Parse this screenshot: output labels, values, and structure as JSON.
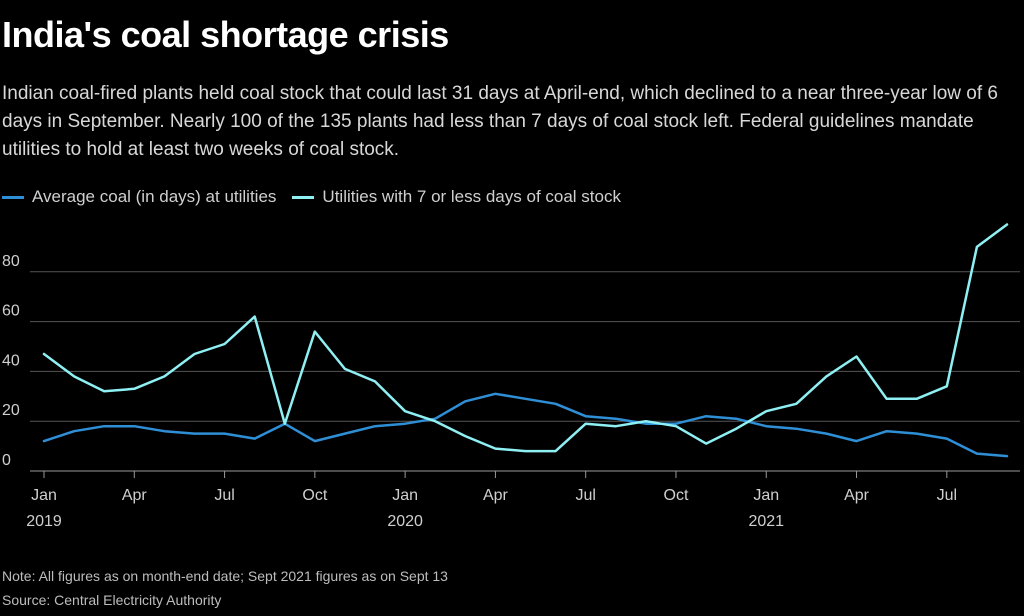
{
  "title": "India's coal shortage crisis",
  "subtitle": "Indian coal-fired plants held coal stock that could last 31 days at April-end, which declined to a near three-year low of 6 days in September. Nearly 100 of the 135 plants had less than 7 days of coal stock left. Federal guidelines mandate utilities to hold at least two weeks of coal stock.",
  "note": "Note: All figures as on month-end date; Sept 2021 figures as on Sept 13",
  "source": "Source: Central Electricity Authority",
  "colors": {
    "average": "#2f8fd6",
    "utilities": "#8ff0f4",
    "grid": "#555555",
    "axis_text": "#cfcfcf"
  },
  "chart_data": {
    "type": "line",
    "x": [
      "2019-01",
      "2019-02",
      "2019-03",
      "2019-04",
      "2019-05",
      "2019-06",
      "2019-07",
      "2019-08",
      "2019-09",
      "2019-10",
      "2019-11",
      "2019-12",
      "2020-01",
      "2020-02",
      "2020-03",
      "2020-04",
      "2020-05",
      "2020-06",
      "2020-07",
      "2020-08",
      "2020-09",
      "2020-10",
      "2020-11",
      "2020-12",
      "2021-01",
      "2021-02",
      "2021-03",
      "2021-04",
      "2021-05",
      "2021-06",
      "2021-07",
      "2021-08",
      "2021-09"
    ],
    "series": [
      {
        "name": "Average coal (in days) at utilities",
        "color": "#2f8fd6",
        "values": [
          12,
          16,
          18,
          18,
          16,
          15,
          15,
          13,
          19,
          12,
          15,
          18,
          19,
          21,
          28,
          31,
          29,
          27,
          22,
          21,
          19,
          19,
          22,
          21,
          18,
          17,
          15,
          12,
          16,
          15,
          13,
          7,
          6
        ]
      },
      {
        "name": "Utilities with 7 or less days of coal stock",
        "color": "#8ff0f4",
        "values": [
          47,
          38,
          32,
          33,
          38,
          47,
          51,
          62,
          19,
          56,
          41,
          36,
          24,
          20,
          14,
          9,
          8,
          8,
          19,
          18,
          20,
          18,
          11,
          17,
          24,
          27,
          38,
          46,
          29,
          29,
          34,
          90,
          99
        ]
      }
    ],
    "yticks": [
      0,
      20,
      40,
      60,
      80
    ],
    "ylim": [
      0,
      100
    ],
    "xticks": [
      {
        "index": 0,
        "label": "Jan",
        "year": "2019"
      },
      {
        "index": 3,
        "label": "Apr",
        "year": ""
      },
      {
        "index": 6,
        "label": "Jul",
        "year": ""
      },
      {
        "index": 9,
        "label": "Oct",
        "year": ""
      },
      {
        "index": 12,
        "label": "Jan",
        "year": "2020"
      },
      {
        "index": 15,
        "label": "Apr",
        "year": ""
      },
      {
        "index": 18,
        "label": "Jul",
        "year": ""
      },
      {
        "index": 21,
        "label": "Oct",
        "year": ""
      },
      {
        "index": 24,
        "label": "Jan",
        "year": "2021"
      },
      {
        "index": 27,
        "label": "Apr",
        "year": ""
      },
      {
        "index": 30,
        "label": "Jul",
        "year": ""
      }
    ],
    "grid": true,
    "legend": "top-left"
  }
}
